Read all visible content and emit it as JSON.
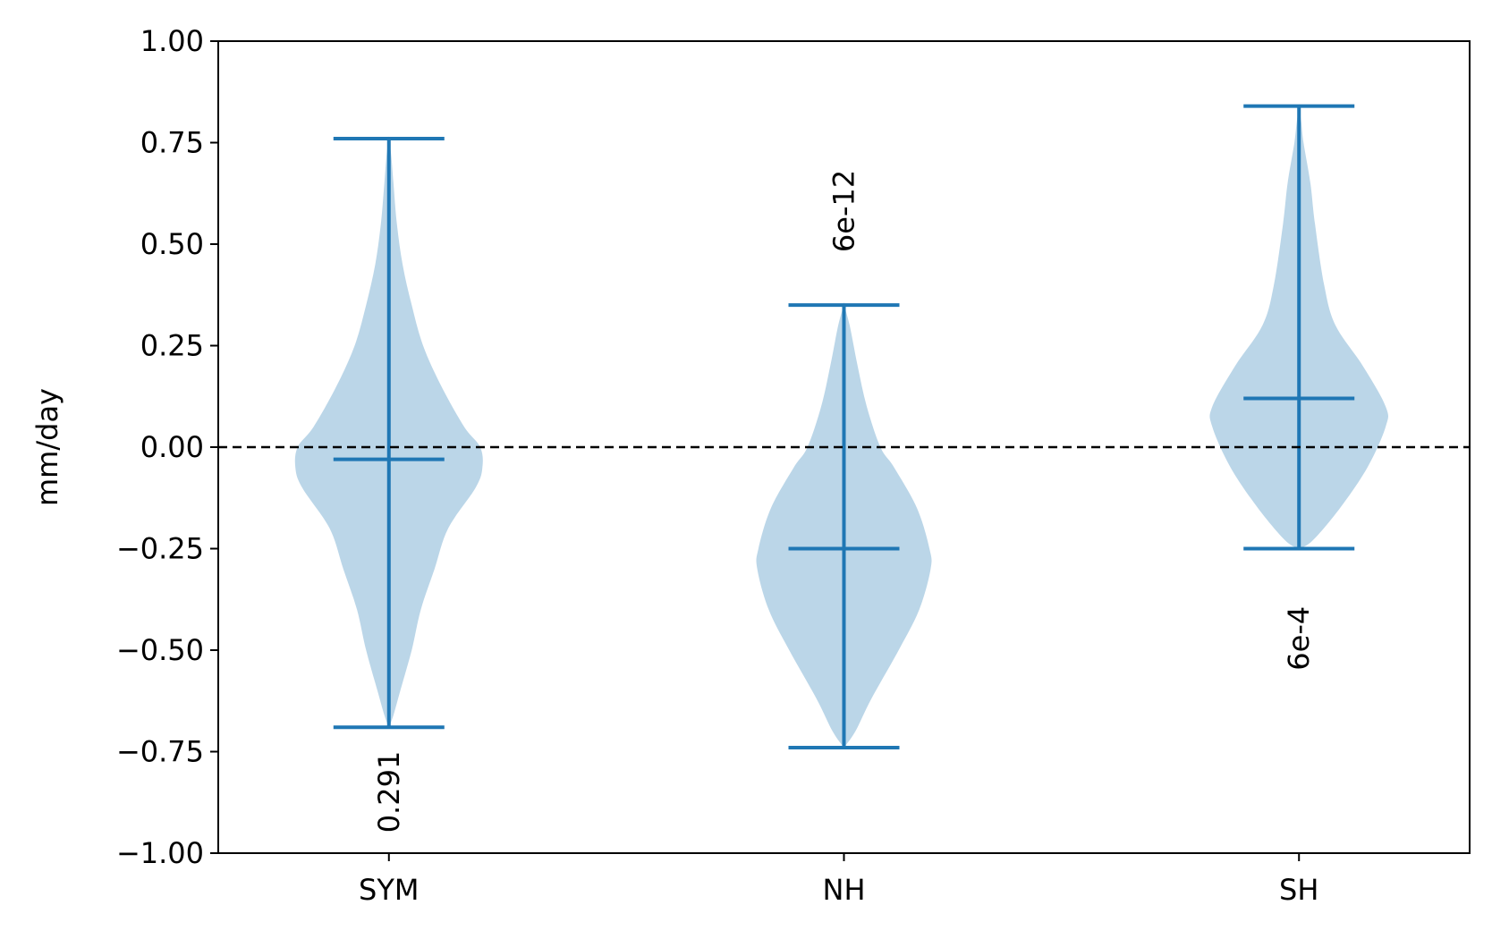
{
  "chart_data": {
    "type": "violin",
    "title": "",
    "xlabel": "",
    "ylabel": "mm/day",
    "ylim": [
      -1.0,
      1.0
    ],
    "yticks": [
      1.0,
      0.75,
      0.5,
      0.25,
      0.0,
      -0.25,
      -0.5,
      -0.75,
      -1.0
    ],
    "ytick_labels": [
      "1.00",
      "0.75",
      "0.50",
      "0.25",
      "0.00",
      "−0.25",
      "−0.50",
      "−0.75",
      "−1.00"
    ],
    "categories": [
      "SYM",
      "NH",
      "SH"
    ],
    "reference_line": {
      "y": 0.0,
      "style": "dashed",
      "color": "#000000"
    },
    "grid": false,
    "colors": {
      "body": "#1f77b4",
      "body_opacity": 0.3,
      "lines": "#1f77b4"
    },
    "violins": [
      {
        "category": "SYM",
        "min": -0.69,
        "max": 0.76,
        "mean": -0.03,
        "annotation": "0.291",
        "annotation_y": -0.95,
        "profile": [
          [
            -0.69,
            0.0
          ],
          [
            -0.66,
            0.02
          ],
          [
            -0.6,
            0.05
          ],
          [
            -0.5,
            0.1
          ],
          [
            -0.4,
            0.14
          ],
          [
            -0.3,
            0.2
          ],
          [
            -0.2,
            0.26
          ],
          [
            -0.1,
            0.38
          ],
          [
            -0.05,
            0.41
          ],
          [
            0.0,
            0.4
          ],
          [
            0.05,
            0.33
          ],
          [
            0.15,
            0.23
          ],
          [
            0.25,
            0.15
          ],
          [
            0.35,
            0.1
          ],
          [
            0.45,
            0.06
          ],
          [
            0.55,
            0.035
          ],
          [
            0.65,
            0.02
          ],
          [
            0.72,
            0.01
          ],
          [
            0.76,
            0.0
          ]
        ]
      },
      {
        "category": "NH",
        "min": -0.74,
        "max": 0.35,
        "mean": -0.25,
        "annotation": "6e-12",
        "annotation_y": 0.48,
        "profile": [
          [
            -0.74,
            0.0
          ],
          [
            -0.7,
            0.05
          ],
          [
            -0.62,
            0.12
          ],
          [
            -0.5,
            0.24
          ],
          [
            -0.4,
            0.33
          ],
          [
            -0.3,
            0.38
          ],
          [
            -0.25,
            0.375
          ],
          [
            -0.15,
            0.32
          ],
          [
            -0.05,
            0.22
          ],
          [
            0.0,
            0.16
          ],
          [
            0.1,
            0.1
          ],
          [
            0.2,
            0.06
          ],
          [
            0.3,
            0.025
          ],
          [
            0.35,
            0.0
          ]
        ]
      },
      {
        "category": "SH",
        "min": -0.25,
        "max": 0.84,
        "mean": 0.12,
        "annotation": "6e-4",
        "annotation_y": -0.55,
        "profile": [
          [
            -0.25,
            0.0
          ],
          [
            -0.23,
            0.06
          ],
          [
            -0.15,
            0.18
          ],
          [
            -0.05,
            0.3
          ],
          [
            0.05,
            0.38
          ],
          [
            0.1,
            0.38
          ],
          [
            0.2,
            0.28
          ],
          [
            0.3,
            0.16
          ],
          [
            0.4,
            0.11
          ],
          [
            0.55,
            0.07
          ],
          [
            0.65,
            0.05
          ],
          [
            0.75,
            0.02
          ],
          [
            0.8,
            0.01
          ],
          [
            0.84,
            0.0
          ]
        ]
      }
    ]
  }
}
